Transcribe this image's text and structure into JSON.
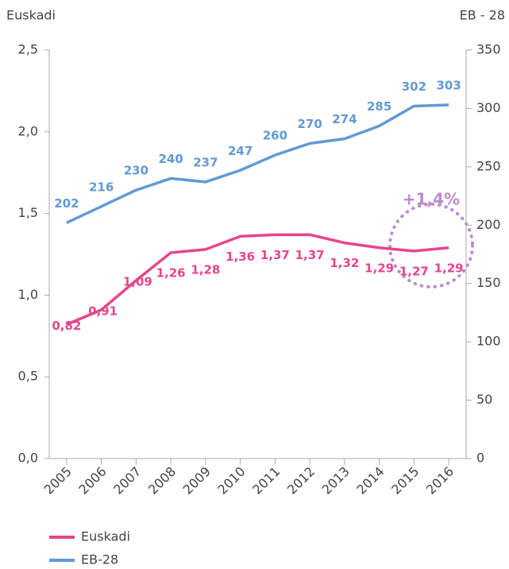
{
  "chart_data": {
    "type": "line",
    "y_axis_label": "Euskadi",
    "y2_axis_label": "EB - 28",
    "annotation": "+1,4%",
    "categories": [
      "2005",
      "2006",
      "2007",
      "2008",
      "2009",
      "2010",
      "2011",
      "2012",
      "2013",
      "2014",
      "2015",
      "2016"
    ],
    "series": [
      {
        "name": "Euskadi",
        "color": "#e8458b",
        "values": [
          0.82,
          0.91,
          1.09,
          1.26,
          1.28,
          1.36,
          1.37,
          1.37,
          1.32,
          1.29,
          1.27,
          1.29
        ],
        "value_labels": [
          "0,82",
          "0,91",
          "1,09",
          "1,26",
          "1,28",
          "1,36",
          "1,37",
          "1,37",
          "1,32",
          "1,29",
          "1,27",
          "1,29"
        ]
      },
      {
        "name": "EB-28",
        "color": "#6399d4",
        "axis": "y2",
        "values": [
          202,
          216,
          230,
          240,
          237,
          247,
          260,
          270,
          274,
          285,
          302,
          303
        ]
      }
    ],
    "ylim": [
      0,
      2.5
    ],
    "yticks": [
      {
        "value": 0,
        "label": "0,0"
      },
      {
        "value": 0.5,
        "label": "0,5"
      },
      {
        "value": 1,
        "label": "1,0"
      },
      {
        "value": 1.5,
        "label": "1,5"
      },
      {
        "value": 2,
        "label": "2,0"
      },
      {
        "value": 2.5,
        "label": "2,5"
      }
    ],
    "y2lim": [
      0,
      350
    ],
    "y2ticks": [
      0,
      50,
      100,
      150,
      200,
      250,
      300,
      350
    ],
    "grid": false
  }
}
